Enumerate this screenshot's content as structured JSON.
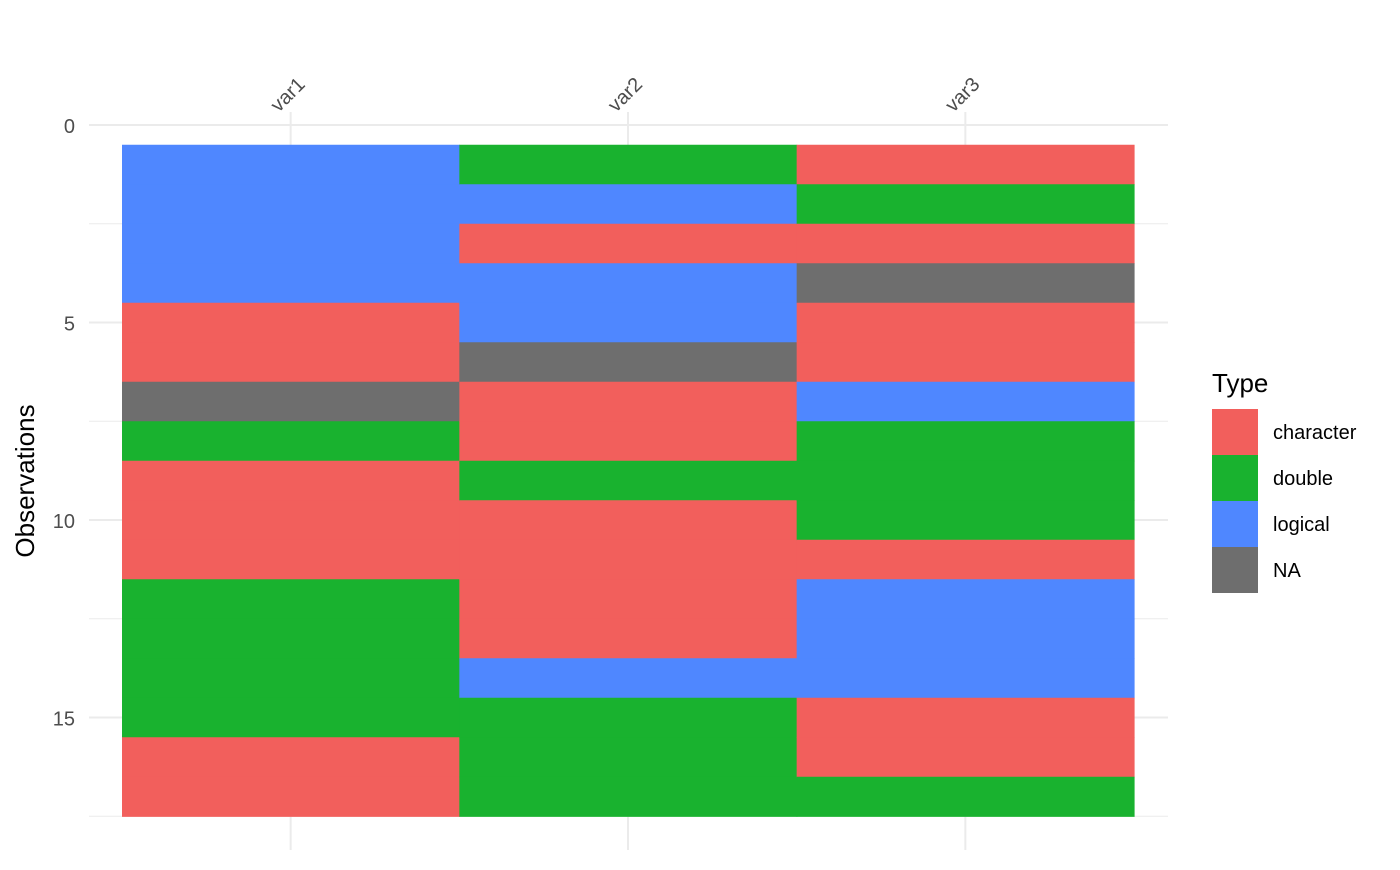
{
  "chart_data": {
    "type": "heatmap",
    "title": "",
    "xlabel": "",
    "ylabel": "Observations",
    "x_axis_position": "top",
    "x_tick_label_angle": -45,
    "columns": [
      "var1",
      "var2",
      "var3"
    ],
    "y_ticks": [
      0,
      5,
      10,
      15
    ],
    "ylim": [
      0,
      17.5
    ],
    "y_reversed": true,
    "grid": true,
    "legend": {
      "title": "Type",
      "position": "right",
      "entries": [
        {
          "label": "character",
          "color": "#F25F5C"
        },
        {
          "label": "double",
          "color": "#19B22F"
        },
        {
          "label": "logical",
          "color": "#4F87FF"
        },
        {
          "label": "NA",
          "color": "#6E6E6E"
        }
      ]
    },
    "observations": [
      1,
      2,
      3,
      4,
      5,
      6,
      7,
      8,
      9,
      10,
      11,
      12,
      13,
      14,
      15,
      16,
      17
    ],
    "values": {
      "var1": [
        "logical",
        "logical",
        "logical",
        "logical",
        "character",
        "character",
        "NA",
        "double",
        "character",
        "character",
        "character",
        "double",
        "double",
        "double",
        "double",
        "character",
        "character"
      ],
      "var2": [
        "double",
        "logical",
        "character",
        "logical",
        "logical",
        "NA",
        "character",
        "character",
        "double",
        "character",
        "character",
        "character",
        "character",
        "logical",
        "double",
        "double",
        "double"
      ],
      "var3": [
        "character",
        "double",
        "character",
        "NA",
        "character",
        "character",
        "logical",
        "double",
        "double",
        "double",
        "character",
        "logical",
        "logical",
        "logical",
        "character",
        "character",
        "double"
      ]
    }
  }
}
